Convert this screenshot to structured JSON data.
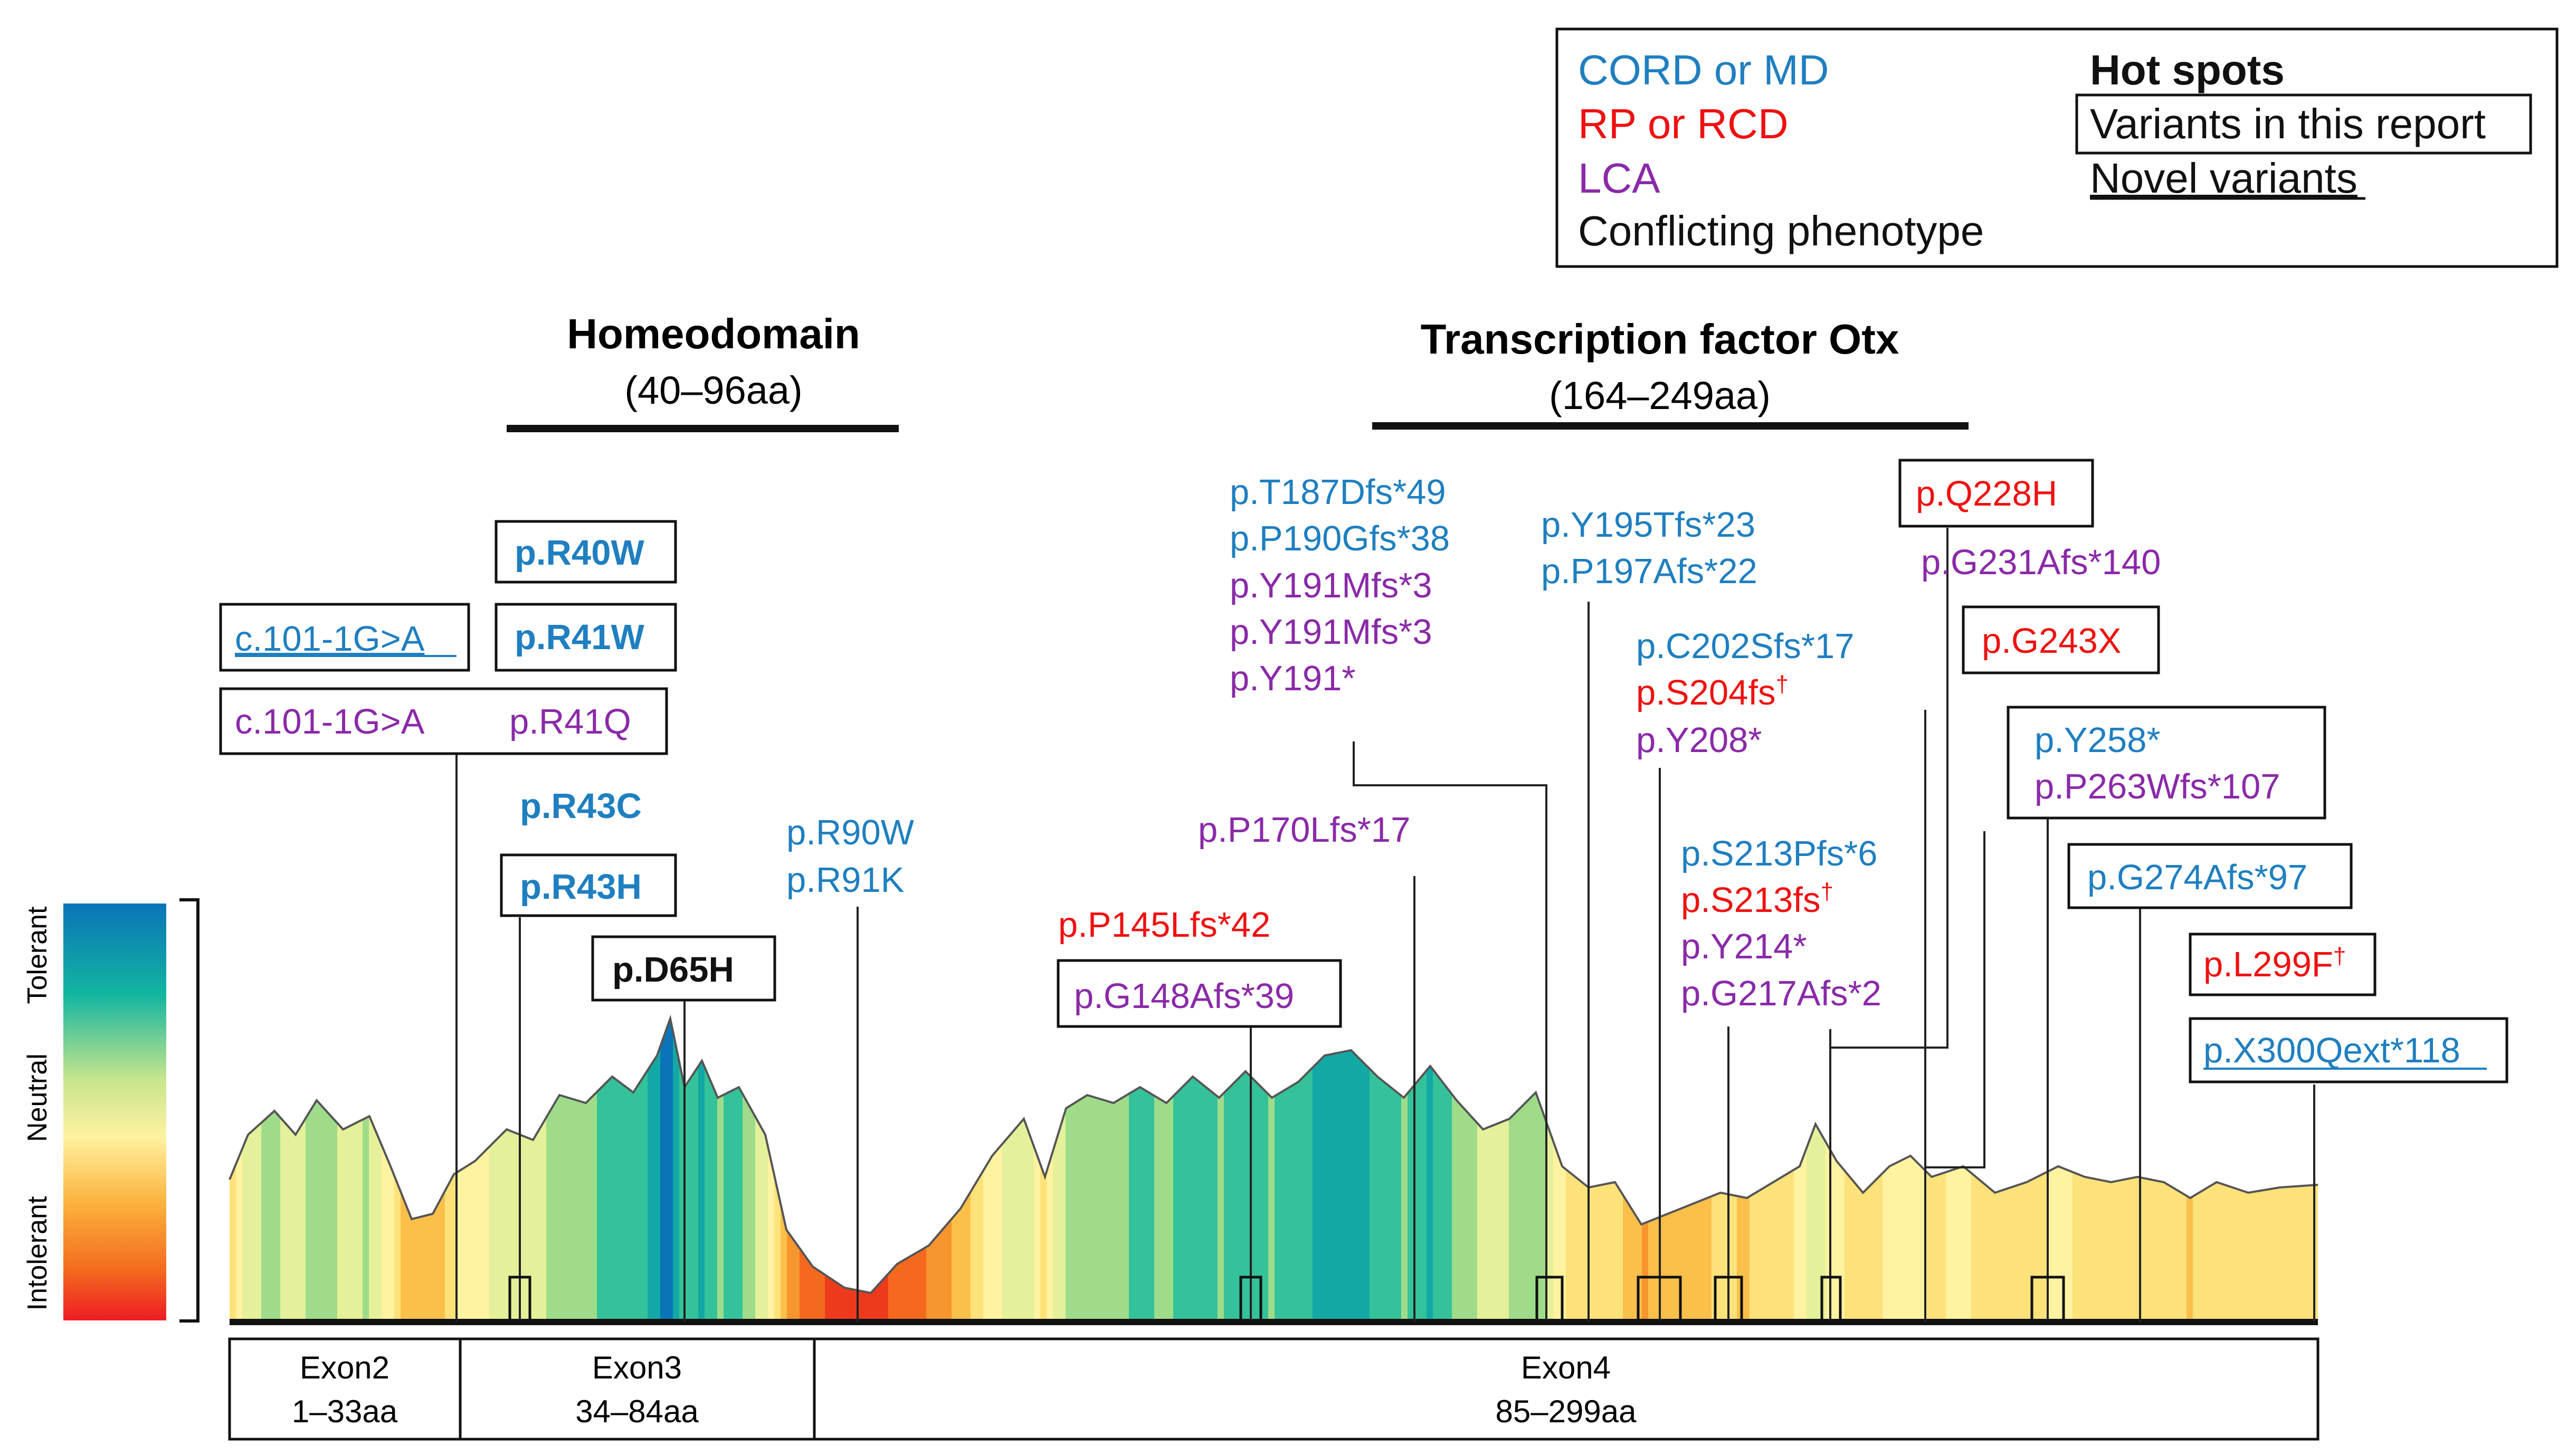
{
  "colors": {
    "cord_md": "#1f7fc0",
    "rp_rcd": "#ee1111",
    "lca": "#8a2aa8",
    "conflicting": "#111111"
  },
  "legend": {
    "cord_md": "CORD or MD",
    "rp_rcd": "RP or RCD",
    "lca": "LCA",
    "conflicting": "Conflicting phenotype",
    "hot_spots": "Hot spots",
    "variants_in_report": "Variants in this report",
    "novel_variants": "Novel variants"
  },
  "domains": [
    {
      "name": "Homeodomain",
      "range": "(40–96aa)"
    },
    {
      "name": "Transcription factor Otx",
      "range": "(164–249aa)"
    }
  ],
  "exons": [
    {
      "name": "Exon2",
      "range": "1–33aa"
    },
    {
      "name": "Exon3",
      "range": "34–84aa"
    },
    {
      "name": "Exon4",
      "range": "85–299aa"
    }
  ],
  "tolerance_scale": {
    "top": "Tolerant",
    "middle": "Neutral",
    "bottom": "Intolerant"
  },
  "variants": {
    "c101_cord": "c.101-1G>A",
    "c101_lca": "c.101-1G>A",
    "r41q": "p.R41Q",
    "r40w": "p.R40W",
    "r41w": "p.R41W",
    "r43c": "p.R43C",
    "r43h": "p.R43H",
    "d65h": "p.D65H",
    "r90w": "p.R90W",
    "r91k": "p.R91K",
    "p145": "p.P145Lfs*42",
    "g148": "p.G148Afs*39",
    "p170": "p.P170Lfs*17",
    "t187": "p.T187Dfs*49",
    "p190": "p.P190Gfs*38",
    "y191m_a": "p.Y191Mfs*3",
    "y191m_b": "p.Y191Mfs*3",
    "y191x": "p.Y191*",
    "y195": "p.Y195Tfs*23",
    "p197": "p.P197Afs*22",
    "c202": "p.C202Sfs*17",
    "s204": "p.S204fs",
    "y208": "p.Y208*",
    "s213p": "p.S213Pfs*6",
    "s213fs": "p.S213fs",
    "y214": "p.Y214*",
    "g217": "p.G217Afs*2",
    "q228": "p.Q228H",
    "g231": "p.G231Afs*140",
    "g243": "p.G243X",
    "y258": "p.Y258*",
    "p263": "p.P263Wfs*107",
    "g274": "p.G274Afs*97",
    "l299": "p.L299F",
    "x300": "p.X300Qext*118"
  },
  "dagger": "†"
}
